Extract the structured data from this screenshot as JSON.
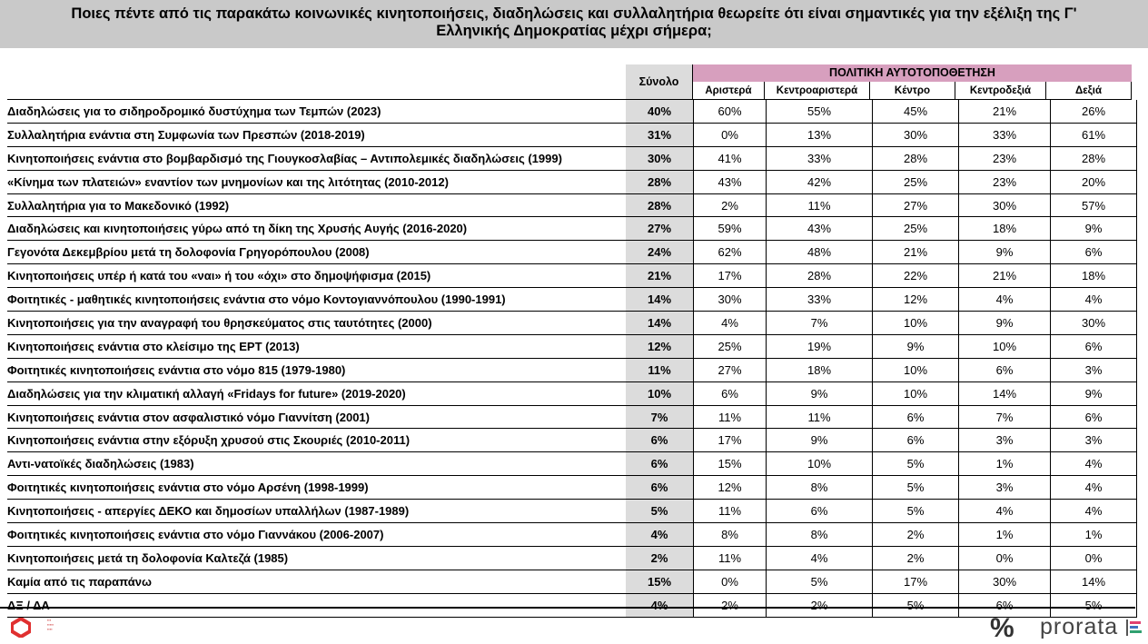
{
  "title": {
    "line1": "Ποιες πέντε από τις παρακάτω κοινωνικές κινητοποιήσεις, διαδηλώσεις και συλλαλητήρια θεωρείτε ότι είναι σημαντικές για την εξέλιξη της Γ'",
    "line2": "Ελληνικής Δημοκρατίας μέχρι σήμερα;"
  },
  "table": {
    "total_header": "Σύνολο",
    "group_header": "ΠΟΛΙΤΙΚΗ ΑΥΤΟΤΟΠΟΘΕΤΗΣΗ",
    "columns": [
      "Αριστερά",
      "Κεντροαριστερά",
      "Κέντρο",
      "Κεντροδεξιά",
      "Δεξιά"
    ],
    "rows": [
      {
        "label": "Διαδηλώσεις για το σιδηροδρομικό δυστύχημα των Τεμπών (2023)",
        "total": "40%",
        "values": [
          "60%",
          "55%",
          "45%",
          "21%",
          "26%"
        ]
      },
      {
        "label": "Συλλαλητήρια ενάντια στη Συμφωνία των Πρεσπών (2018-2019)",
        "total": "31%",
        "values": [
          "0%",
          "13%",
          "30%",
          "33%",
          "61%"
        ]
      },
      {
        "label": "Κινητοποιήσεις ενάντια στο βομβαρδισμό της Γιουγκοσλαβίας – Αντιπολεμικές διαδηλώσεις (1999)",
        "total": "30%",
        "values": [
          "41%",
          "33%",
          "28%",
          "23%",
          "28%"
        ]
      },
      {
        "label": " «Κίνημα των πλατειών» εναντίον των μνημονίων και της λιτότητας (2010-2012)",
        "total": "28%",
        "values": [
          "43%",
          "42%",
          "25%",
          "23%",
          "20%"
        ]
      },
      {
        "label": "Συλλαλητήρια για το Μακεδονικό (1992)",
        "total": "28%",
        "values": [
          "2%",
          "11%",
          "27%",
          "30%",
          "57%"
        ]
      },
      {
        "label": "Διαδηλώσεις και κινητοποιήσεις γύρω από τη δίκη της Χρυσής Αυγής (2016-2020)",
        "total": "27%",
        "values": [
          "59%",
          "43%",
          "25%",
          "18%",
          "9%"
        ]
      },
      {
        "label": "Γεγονότα Δεκεμβρίου μετά τη δολοφονία Γρηγορόπουλου (2008)",
        "total": "24%",
        "values": [
          "62%",
          "48%",
          "21%",
          "9%",
          "6%"
        ]
      },
      {
        "label": "Κινητοποιήσεις υπέρ ή κατά του «ναι» ή του «όχι» στο δημοψήφισμα (2015)",
        "total": "21%",
        "values": [
          "17%",
          "28%",
          "22%",
          "21%",
          "18%"
        ]
      },
      {
        "label": "Φοιτητικές - μαθητικές κινητοποιήσεις ενάντια στο νόμο Κοντογιαννόπουλου (1990-1991)",
        "total": "14%",
        "values": [
          "30%",
          "33%",
          "12%",
          "4%",
          "4%"
        ]
      },
      {
        "label": "Κινητοποιήσεις για την αναγραφή του θρησκεύματος στις ταυτότητες (2000)",
        "total": "14%",
        "values": [
          "4%",
          "7%",
          "10%",
          "9%",
          "30%"
        ]
      },
      {
        "label": "Κινητοποιήσεις ενάντια στο κλείσιμο της ΕΡΤ (2013)",
        "total": "12%",
        "values": [
          "25%",
          "19%",
          "9%",
          "10%",
          "6%"
        ]
      },
      {
        "label": "Φοιτητικές κινητοποιήσεις ενάντια στο νόμο 815 (1979-1980)",
        "total": "11%",
        "values": [
          "27%",
          "18%",
          "10%",
          "6%",
          "3%"
        ]
      },
      {
        "label": "Διαδηλώσεις για την κλιματική αλλαγή «Fridays for future» (2019-2020)",
        "total": "10%",
        "values": [
          "6%",
          "9%",
          "10%",
          "14%",
          "9%"
        ]
      },
      {
        "label": "Κινητοποιήσεις ενάντια στον ασφαλιστικό νόμο Γιαννίτση (2001)",
        "total": "7%",
        "values": [
          "11%",
          "11%",
          "6%",
          "7%",
          "6%"
        ]
      },
      {
        "label": "Κινητοποιήσεις ενάντια στην εξόρυξη χρυσού στις Σκουριές (2010-2011)",
        "total": "6%",
        "values": [
          "17%",
          "9%",
          "6%",
          "3%",
          "3%"
        ]
      },
      {
        "label": "Αντι-νατοϊκές διαδηλώσεις (1983)",
        "total": "6%",
        "values": [
          "15%",
          "10%",
          "5%",
          "1%",
          "4%"
        ]
      },
      {
        "label": "Φοιτητικές κινητοποιήσεις ενάντια στο νόμο Αρσένη (1998-1999)",
        "total": "6%",
        "values": [
          "12%",
          "8%",
          "5%",
          "3%",
          "4%"
        ]
      },
      {
        "label": "Κινητοποιήσεις - απεργίες ΔΕΚΟ και δημοσίων υπαλλήλων (1987-1989)",
        "total": "5%",
        "values": [
          "11%",
          "6%",
          "5%",
          "4%",
          "4%"
        ]
      },
      {
        "label": "Φοιτητικές κινητοποιήσεις ενάντια στο νόμο Γιαννάκου (2006-2007)",
        "total": "4%",
        "values": [
          "8%",
          "8%",
          "2%",
          "1%",
          "1%"
        ]
      },
      {
        "label": "Κινητοποιήσεις μετά τη δολοφονία Καλτεζά (1985)",
        "total": "2%",
        "values": [
          "11%",
          "4%",
          "2%",
          "0%",
          "0%"
        ]
      },
      {
        "label": "Καμία από τις παραπάνω",
        "total": "15%",
        "values": [
          "0%",
          "5%",
          "17%",
          "30%",
          "14%"
        ]
      },
      {
        "label": "ΔΞ / ΔΑ",
        "total": "4%",
        "values": [
          "2%",
          "2%",
          "5%",
          "6%",
          "5%"
        ]
      }
    ]
  },
  "footer": {
    "percent_logo": "%",
    "brand": "prorata",
    "left_logo_icon": "red-shape-logo-icon",
    "colors": {
      "header_pink": "#d79fbe",
      "total_gray": "#dcdcdc",
      "title_gray": "#c9c9c9"
    }
  }
}
